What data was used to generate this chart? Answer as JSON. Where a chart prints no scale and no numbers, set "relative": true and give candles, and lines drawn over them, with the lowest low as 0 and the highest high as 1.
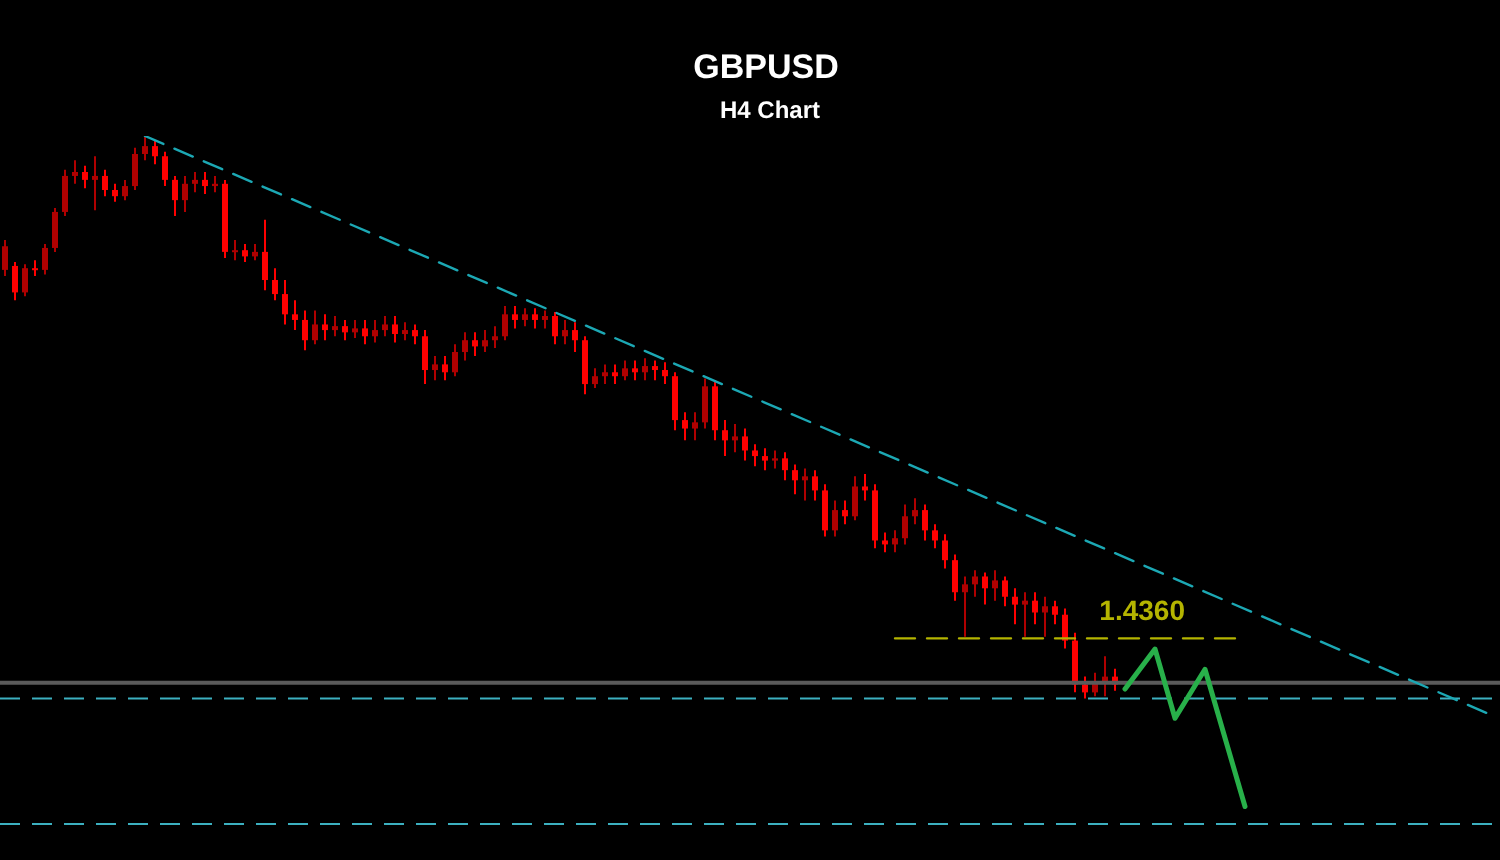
{
  "chart_data": {
    "type": "candlestick",
    "title": "GBPUSD",
    "subtitle": "H4 Chart",
    "relative": true,
    "categories": [
      null,
      null,
      null,
      null,
      null,
      null,
      null,
      null,
      null,
      null,
      null,
      null,
      null,
      null,
      null,
      null,
      null,
      null,
      null,
      null,
      null,
      null,
      null,
      null,
      null,
      null,
      null,
      null,
      null,
      null,
      null,
      null,
      null,
      null,
      null,
      null,
      null,
      null,
      null,
      null,
      null,
      null,
      null,
      null,
      null,
      null,
      null,
      null,
      null,
      null,
      null,
      null,
      null,
      null,
      null,
      null,
      null,
      null,
      null,
      null,
      null,
      null,
      null,
      null,
      null,
      null,
      null,
      null,
      null,
      null,
      null,
      null,
      null,
      null,
      null,
      null,
      null,
      null,
      null,
      null,
      null,
      null,
      null,
      null,
      null,
      null,
      null,
      null,
      null,
      null,
      null,
      null,
      null,
      null,
      null,
      null,
      null,
      null,
      null,
      null,
      null,
      null,
      null,
      null,
      null,
      null,
      null,
      null,
      null,
      null,
      null,
      null,
      null,
      null,
      null,
      null,
      null,
      null,
      null,
      null,
      null,
      null,
      null,
      null,
      null,
      null,
      null,
      null,
      null,
      null,
      null,
      null,
      null,
      null,
      null,
      null,
      null,
      null,
      null,
      null,
      null,
      null,
      null,
      null,
      null,
      null,
      null,
      null,
      null,
      null
    ],
    "ohlc": [
      [
        0.762,
        0.815,
        0.751,
        0.804
      ],
      [
        0.769,
        0.776,
        0.708,
        0.722
      ],
      [
        0.722,
        0.772,
        0.715,
        0.765
      ],
      [
        0.765,
        0.779,
        0.751,
        0.762
      ],
      [
        0.762,
        0.808,
        0.754,
        0.801
      ],
      [
        0.801,
        0.872,
        0.794,
        0.865
      ],
      [
        0.865,
        0.94,
        0.858,
        0.929
      ],
      [
        0.929,
        0.957,
        0.915,
        0.936
      ],
      [
        0.936,
        0.947,
        0.907,
        0.922
      ],
      [
        0.922,
        0.964,
        0.868,
        0.929
      ],
      [
        0.929,
        0.94,
        0.893,
        0.904
      ],
      [
        0.904,
        0.915,
        0.883,
        0.893
      ],
      [
        0.893,
        0.922,
        0.886,
        0.911
      ],
      [
        0.911,
        0.979,
        0.904,
        0.968
      ],
      [
        0.968,
        1,
        0.957,
        0.982
      ],
      [
        0.982,
        0.993,
        0.95,
        0.964
      ],
      [
        0.964,
        0.972,
        0.911,
        0.922
      ],
      [
        0.922,
        0.929,
        0.858,
        0.886
      ],
      [
        0.886,
        0.929,
        0.865,
        0.915
      ],
      [
        0.915,
        0.936,
        0.9,
        0.922
      ],
      [
        0.922,
        0.936,
        0.897,
        0.911
      ],
      [
        0.911,
        0.929,
        0.9,
        0.915
      ],
      [
        0.915,
        0.922,
        0.783,
        0.794
      ],
      [
        0.794,
        0.815,
        0.779,
        0.797
      ],
      [
        0.797,
        0.808,
        0.776,
        0.786
      ],
      [
        0.786,
        0.808,
        0.779,
        0.794
      ],
      [
        0.794,
        0.851,
        0.726,
        0.744
      ],
      [
        0.744,
        0.765,
        0.708,
        0.719
      ],
      [
        0.719,
        0.744,
        0.665,
        0.683
      ],
      [
        0.683,
        0.708,
        0.655,
        0.673
      ],
      [
        0.673,
        0.69,
        0.619,
        0.637
      ],
      [
        0.637,
        0.69,
        0.63,
        0.665
      ],
      [
        0.665,
        0.683,
        0.637,
        0.655
      ],
      [
        0.655,
        0.68,
        0.644,
        0.662
      ],
      [
        0.662,
        0.673,
        0.637,
        0.651
      ],
      [
        0.651,
        0.673,
        0.641,
        0.658
      ],
      [
        0.658,
        0.673,
        0.63,
        0.644
      ],
      [
        0.644,
        0.673,
        0.633,
        0.655
      ],
      [
        0.655,
        0.68,
        0.644,
        0.665
      ],
      [
        0.665,
        0.68,
        0.633,
        0.648
      ],
      [
        0.648,
        0.669,
        0.637,
        0.655
      ],
      [
        0.655,
        0.665,
        0.63,
        0.644
      ],
      [
        0.644,
        0.655,
        0.559,
        0.584
      ],
      [
        0.584,
        0.609,
        0.566,
        0.594
      ],
      [
        0.594,
        0.609,
        0.566,
        0.58
      ],
      [
        0.58,
        0.63,
        0.573,
        0.616
      ],
      [
        0.616,
        0.651,
        0.601,
        0.637
      ],
      [
        0.637,
        0.651,
        0.609,
        0.626
      ],
      [
        0.626,
        0.655,
        0.616,
        0.637
      ],
      [
        0.637,
        0.662,
        0.623,
        0.644
      ],
      [
        0.644,
        0.698,
        0.637,
        0.683
      ],
      [
        0.683,
        0.698,
        0.658,
        0.673
      ],
      [
        0.673,
        0.694,
        0.662,
        0.683
      ],
      [
        0.683,
        0.694,
        0.658,
        0.673
      ],
      [
        0.673,
        0.69,
        0.658,
        0.68
      ],
      [
        0.68,
        0.687,
        0.63,
        0.644
      ],
      [
        0.644,
        0.673,
        0.63,
        0.655
      ],
      [
        0.655,
        0.669,
        0.616,
        0.637
      ],
      [
        0.637,
        0.644,
        0.541,
        0.559
      ],
      [
        0.559,
        0.587,
        0.552,
        0.573
      ],
      [
        0.573,
        0.594,
        0.559,
        0.58
      ],
      [
        0.58,
        0.594,
        0.559,
        0.573
      ],
      [
        0.573,
        0.601,
        0.566,
        0.587
      ],
      [
        0.587,
        0.601,
        0.566,
        0.58
      ],
      [
        0.58,
        0.605,
        0.566,
        0.591
      ],
      [
        0.591,
        0.601,
        0.566,
        0.584
      ],
      [
        0.584,
        0.598,
        0.559,
        0.573
      ],
      [
        0.573,
        0.58,
        0.477,
        0.495
      ],
      [
        0.495,
        0.509,
        0.459,
        0.48
      ],
      [
        0.48,
        0.509,
        0.459,
        0.491
      ],
      [
        0.491,
        0.569,
        0.48,
        0.555
      ],
      [
        0.555,
        0.566,
        0.459,
        0.477
      ],
      [
        0.477,
        0.495,
        0.431,
        0.459
      ],
      [
        0.459,
        0.488,
        0.438,
        0.466
      ],
      [
        0.466,
        0.48,
        0.423,
        0.441
      ],
      [
        0.441,
        0.452,
        0.413,
        0.431
      ],
      [
        0.431,
        0.445,
        0.406,
        0.423
      ],
      [
        0.423,
        0.441,
        0.409,
        0.427
      ],
      [
        0.427,
        0.438,
        0.388,
        0.406
      ],
      [
        0.406,
        0.416,
        0.363,
        0.388
      ],
      [
        0.388,
        0.409,
        0.352,
        0.395
      ],
      [
        0.395,
        0.406,
        0.352,
        0.37
      ],
      [
        0.37,
        0.381,
        0.288,
        0.299
      ],
      [
        0.299,
        0.352,
        0.288,
        0.335
      ],
      [
        0.335,
        0.352,
        0.31,
        0.324
      ],
      [
        0.324,
        0.395,
        0.317,
        0.377
      ],
      [
        0.377,
        0.399,
        0.352,
        0.37
      ],
      [
        0.37,
        0.381,
        0.267,
        0.281
      ],
      [
        0.281,
        0.295,
        0.26,
        0.274
      ],
      [
        0.274,
        0.299,
        0.26,
        0.285
      ],
      [
        0.285,
        0.345,
        0.274,
        0.324
      ],
      [
        0.324,
        0.356,
        0.31,
        0.335
      ],
      [
        0.335,
        0.345,
        0.281,
        0.299
      ],
      [
        0.299,
        0.31,
        0.267,
        0.281
      ],
      [
        0.281,
        0.292,
        0.231,
        0.246
      ],
      [
        0.246,
        0.256,
        0.174,
        0.189
      ],
      [
        0.189,
        0.217,
        0.11,
        0.203
      ],
      [
        0.203,
        0.228,
        0.181,
        0.217
      ],
      [
        0.217,
        0.224,
        0.167,
        0.196
      ],
      [
        0.196,
        0.228,
        0.174,
        0.21
      ],
      [
        0.21,
        0.217,
        0.164,
        0.181
      ],
      [
        0.181,
        0.196,
        0.132,
        0.167
      ],
      [
        0.167,
        0.189,
        0.11,
        0.174
      ],
      [
        0.174,
        0.189,
        0.132,
        0.153
      ],
      [
        0.153,
        0.181,
        0.11,
        0.164
      ],
      [
        0.164,
        0.174,
        0.132,
        0.149
      ],
      [
        0.149,
        0.16,
        0.089,
        0.103
      ],
      [
        0.103,
        0.117,
        0.011,
        0.025
      ],
      [
        0.025,
        0.039,
        0,
        0.011
      ],
      [
        0.011,
        0.046,
        0.004,
        0.028
      ],
      [
        0.028,
        0.075,
        0.004,
        0.039
      ],
      [
        0.039,
        0.053,
        0.014,
        0.025
      ],
      null,
      null,
      null,
      null,
      null,
      null,
      null,
      null,
      null,
      null,
      null,
      null,
      null,
      null,
      null,
      null,
      null,
      null,
      null,
      null,
      null,
      null,
      null,
      null,
      null,
      null,
      null,
      null,
      null,
      null,
      null,
      null,
      null,
      null,
      null,
      null,
      null,
      null
    ],
    "colors": [
      "#b00000",
      "#ff0000",
      "#b00000",
      "#ff0000",
      "#b00000",
      "#b00000",
      "#b00000",
      "#b00000",
      "#ff0000",
      "#b00000",
      "#ff0000",
      "#ff0000",
      "#b00000",
      "#b00000",
      "#b00000",
      "#ff0000",
      "#ff0000",
      "#ff0000",
      "#b00000",
      "#b00000",
      "#ff0000",
      "#b00000",
      "#ff0000",
      "#b00000",
      "#ff0000",
      "#b00000",
      "#ff0000",
      "#ff0000",
      "#ff0000",
      "#ff0000",
      "#ff0000",
      "#b00000",
      "#ff0000",
      "#b00000",
      "#ff0000",
      "#b00000",
      "#ff0000",
      "#b00000",
      "#b00000",
      "#ff0000",
      "#b00000",
      "#ff0000",
      "#ff0000",
      "#b00000",
      "#ff0000",
      "#b00000",
      "#b00000",
      "#ff0000",
      "#b00000",
      "#b00000",
      "#b00000",
      "#ff0000",
      "#b00000",
      "#ff0000",
      "#b00000",
      "#ff0000",
      "#b00000",
      "#ff0000",
      "#ff0000",
      "#b00000",
      "#b00000",
      "#ff0000",
      "#b00000",
      "#ff0000",
      "#b00000",
      "#ff0000",
      "#ff0000",
      "#ff0000",
      "#ff0000",
      "#b00000",
      "#b00000",
      "#ff0000",
      "#ff0000",
      "#b00000",
      "#ff0000",
      "#ff0000",
      "#ff0000",
      "#b00000",
      "#ff0000",
      "#ff0000",
      "#b00000",
      "#ff0000",
      "#ff0000",
      "#b00000",
      "#ff0000",
      "#b00000",
      "#ff0000",
      "#ff0000",
      "#ff0000",
      "#b00000",
      "#b00000",
      "#b00000",
      "#ff0000",
      "#ff0000",
      "#ff0000",
      "#ff0000",
      "#b00000",
      "#b00000",
      "#ff0000",
      "#b00000",
      "#ff0000",
      "#ff0000",
      "#b00000",
      "#ff0000",
      "#b00000",
      "#ff0000",
      "#ff0000",
      "#ff0000",
      "#ff0000",
      "#b00000",
      "#b00000",
      "#ff0000",
      null,
      null,
      null,
      null,
      null,
      null,
      null,
      null,
      null,
      null,
      null,
      null,
      null,
      null,
      null,
      null,
      null,
      null,
      null,
      null,
      null,
      null,
      null,
      null,
      null,
      null,
      null,
      null,
      null,
      null,
      null,
      null,
      null,
      null,
      null,
      null,
      null,
      null
    ],
    "series": [
      {
        "type": "line",
        "color": "#1ca8b4",
        "line_style": "dashed",
        "values": [
          null,
          null,
          null,
          null,
          null,
          null,
          null,
          null,
          null,
          null,
          null,
          null,
          null,
          null,
          1,
          null,
          null,
          null,
          null,
          null,
          null,
          null,
          null,
          null,
          null,
          null,
          null,
          null,
          null,
          null,
          null,
          null,
          null,
          null,
          null,
          null,
          null,
          null,
          null,
          null,
          null,
          null,
          null,
          null,
          null,
          null,
          null,
          null,
          null,
          null,
          null,
          null,
          null,
          null,
          null,
          null,
          null,
          null,
          null,
          null,
          null,
          null,
          null,
          null,
          null,
          null,
          null,
          null,
          null,
          null,
          null,
          null,
          null,
          null,
          null,
          null,
          null,
          null,
          null,
          null,
          null,
          null,
          null,
          null,
          null,
          null,
          null,
          null,
          null,
          null,
          null,
          null,
          null,
          null,
          null,
          null,
          null,
          null,
          null,
          null,
          null,
          null,
          null,
          null,
          null,
          null,
          null,
          null,
          null,
          null,
          null,
          null,
          null,
          null,
          null,
          null,
          null,
          null,
          null,
          null,
          null,
          null,
          null,
          null,
          null,
          null,
          null,
          null,
          null,
          null,
          null,
          null,
          null,
          null,
          null,
          null,
          null,
          null,
          null,
          null,
          null,
          null,
          null,
          null,
          null,
          null,
          null,
          null,
          null,
          -0.032
        ]
      },
      {
        "type": "line",
        "name": "1.4360",
        "color": "#b4b400",
        "line_style": "dashed",
        "values": [
          null,
          null,
          null,
          null,
          null,
          null,
          null,
          null,
          null,
          null,
          null,
          null,
          null,
          null,
          null,
          null,
          null,
          null,
          null,
          null,
          null,
          null,
          null,
          null,
          null,
          null,
          null,
          null,
          null,
          null,
          null,
          null,
          null,
          null,
          null,
          null,
          null,
          null,
          null,
          null,
          null,
          null,
          null,
          null,
          null,
          null,
          null,
          null,
          null,
          null,
          null,
          null,
          null,
          null,
          null,
          null,
          null,
          null,
          null,
          null,
          null,
          null,
          null,
          null,
          null,
          null,
          null,
          null,
          null,
          null,
          null,
          null,
          null,
          null,
          null,
          null,
          null,
          null,
          null,
          null,
          null,
          null,
          null,
          null,
          null,
          null,
          null,
          null,
          null,
          0.107,
          null,
          null,
          null,
          null,
          null,
          null,
          null,
          null,
          null,
          null,
          null,
          null,
          null,
          null,
          null,
          null,
          null,
          null,
          null,
          null,
          null,
          null,
          null,
          null,
          null,
          null,
          null,
          null,
          null,
          null,
          null,
          null,
          null,
          0.107,
          null,
          null,
          null,
          null,
          null,
          null,
          null,
          null,
          null,
          null,
          null,
          null,
          null,
          null,
          null,
          null,
          null,
          null,
          null,
          null,
          null,
          null,
          null,
          null,
          null,
          null
        ]
      },
      {
        "type": "line",
        "color": "#28b04a",
        "line_style": "solid",
        "values": [
          null,
          null,
          null,
          null,
          null,
          null,
          null,
          null,
          null,
          null,
          null,
          null,
          null,
          null,
          null,
          null,
          null,
          null,
          null,
          null,
          null,
          null,
          null,
          null,
          null,
          null,
          null,
          null,
          null,
          null,
          null,
          null,
          null,
          null,
          null,
          null,
          null,
          null,
          null,
          null,
          null,
          null,
          null,
          null,
          null,
          null,
          null,
          null,
          null,
          null,
          null,
          null,
          null,
          null,
          null,
          null,
          null,
          null,
          null,
          null,
          null,
          null,
          null,
          null,
          null,
          null,
          null,
          null,
          null,
          null,
          null,
          null,
          null,
          null,
          null,
          null,
          null,
          null,
          null,
          null,
          null,
          null,
          null,
          null,
          null,
          null,
          null,
          null,
          null,
          null,
          null,
          null,
          null,
          null,
          null,
          null,
          null,
          null,
          null,
          null,
          null,
          null,
          null,
          null,
          null,
          null,
          null,
          null,
          null,
          null,
          null,
          null,
          0.017,
          null,
          null,
          0.088,
          null,
          -0.035,
          null,
          null,
          0.052,
          null,
          null,
          null,
          -0.192,
          null,
          null,
          null,
          null,
          null,
          null,
          null,
          null,
          null,
          null,
          null,
          null,
          null,
          null,
          null,
          null,
          null,
          null,
          null,
          null,
          null,
          null,
          null,
          null,
          null
        ]
      }
    ],
    "ref_lines": [
      {
        "axis": "y",
        "value": 0.028,
        "color": "#5a5a5a",
        "line_style": "solid"
      },
      {
        "axis": "y",
        "value": 0,
        "color": "#3cb0c0",
        "line_style": "dashed"
      },
      {
        "axis": "y",
        "value": -0.223,
        "color": "#3cb0c0",
        "line_style": "dashed"
      }
    ]
  }
}
